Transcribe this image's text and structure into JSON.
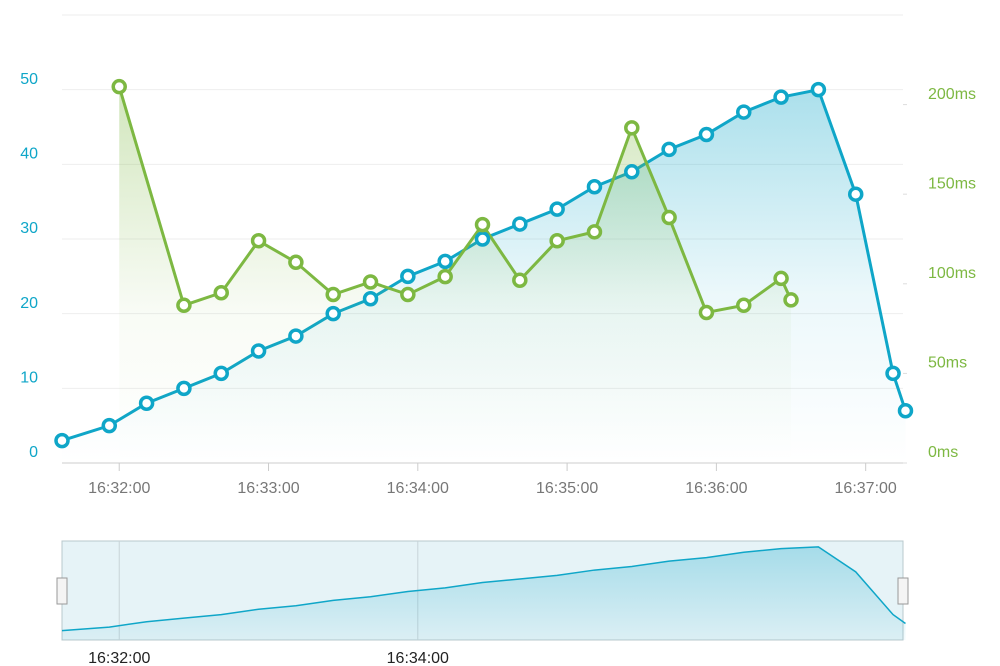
{
  "chart_data": {
    "type": "line",
    "xlim": [
      "16:31:37",
      "16:37:15"
    ],
    "xticks": [
      "16:32:00",
      "16:33:00",
      "16:34:00",
      "16:35:00",
      "16:36:00",
      "16:37:00"
    ],
    "ylim": [
      0,
      60
    ],
    "yticks": [
      0,
      10,
      20,
      30,
      40,
      50
    ],
    "y2lim": [
      0,
      250
    ],
    "y2ticks": [
      {
        "value": 0,
        "label": "0ms"
      },
      {
        "value": 50,
        "label": "50ms"
      },
      {
        "value": 100,
        "label": "100ms"
      },
      {
        "value": 150,
        "label": "150ms"
      },
      {
        "value": 200,
        "label": "200ms"
      }
    ],
    "grid": true,
    "series": [
      {
        "color": "#0fa6c8",
        "axis": "y",
        "x": [
          "16:31:37",
          "16:31:56",
          "16:32:11",
          "16:32:26",
          "16:32:41",
          "16:32:56",
          "16:33:11",
          "16:33:26",
          "16:33:41",
          "16:33:56",
          "16:34:11",
          "16:34:26",
          "16:34:41",
          "16:34:56",
          "16:35:11",
          "16:35:26",
          "16:35:41",
          "16:35:56",
          "16:36:11",
          "16:36:26",
          "16:36:41",
          "16:36:56",
          "16:37:11",
          "16:37:16"
        ],
        "values": [
          3,
          5,
          8,
          10,
          12,
          15,
          17,
          20,
          22,
          25,
          27,
          30,
          32,
          34,
          37,
          39,
          42,
          44,
          47,
          49,
          50,
          36,
          12,
          7
        ]
      },
      {
        "color": "#7db842",
        "axis": "y2",
        "x": [
          "16:32:00",
          "16:32:26",
          "16:32:41",
          "16:32:56",
          "16:33:11",
          "16:33:26",
          "16:33:41",
          "16:33:56",
          "16:34:11",
          "16:34:26",
          "16:34:41",
          "16:34:56",
          "16:35:11",
          "16:35:26",
          "16:35:41",
          "16:35:56",
          "16:36:11",
          "16:36:26",
          "16:36:30"
        ],
        "values": [
          210,
          88,
          95,
          124,
          112,
          94,
          101,
          94,
          104,
          133,
          102,
          124,
          129,
          187,
          137,
          84,
          88,
          103,
          91
        ]
      }
    ],
    "navigator": {
      "xticks": [
        "16:32:00",
        "16:34:00"
      ]
    }
  }
}
